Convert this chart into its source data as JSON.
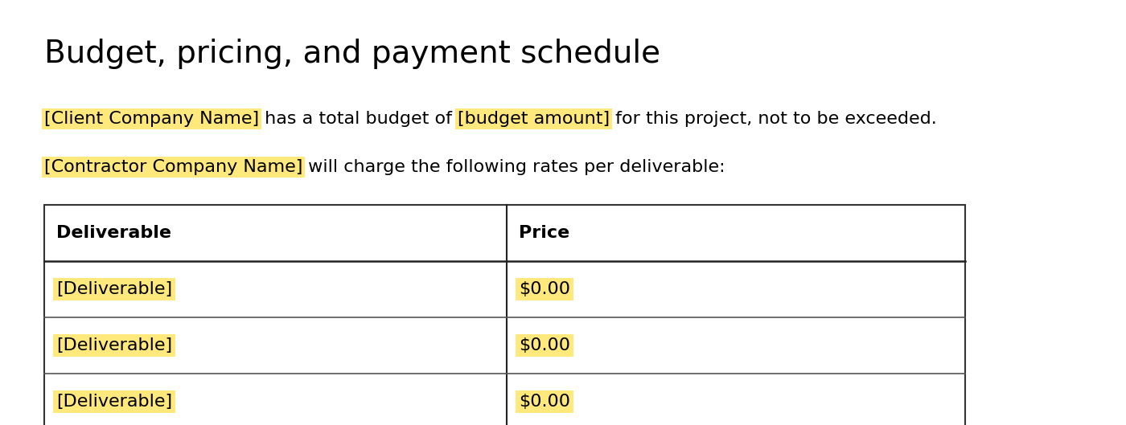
{
  "title": "Budget, pricing, and payment schedule",
  "line1_parts": [
    {
      "text": "[Client Company Name]",
      "highlight": true
    },
    {
      "text": " has a total budget of ",
      "highlight": false
    },
    {
      "text": "[budget amount]",
      "highlight": true
    },
    {
      "text": " for this project, not to be exceeded.",
      "highlight": false
    }
  ],
  "line2_parts": [
    {
      "text": "[Contractor Company Name]",
      "highlight": true
    },
    {
      "text": " will charge the following rates per deliverable:",
      "highlight": false
    }
  ],
  "table_headers": [
    "Deliverable",
    "Price"
  ],
  "table_rows": [
    {
      "deliverable": "[Deliverable]",
      "price": "$0.00"
    },
    {
      "deliverable": "[Deliverable]",
      "price": "$0.00"
    },
    {
      "deliverable": "[Deliverable]",
      "price": "$0.00"
    }
  ],
  "highlight_color": "#FFE87C",
  "background_color": "#ffffff",
  "text_color": "#000000",
  "title_fontsize": 28,
  "body_fontsize": 16,
  "table_fontsize": 16
}
